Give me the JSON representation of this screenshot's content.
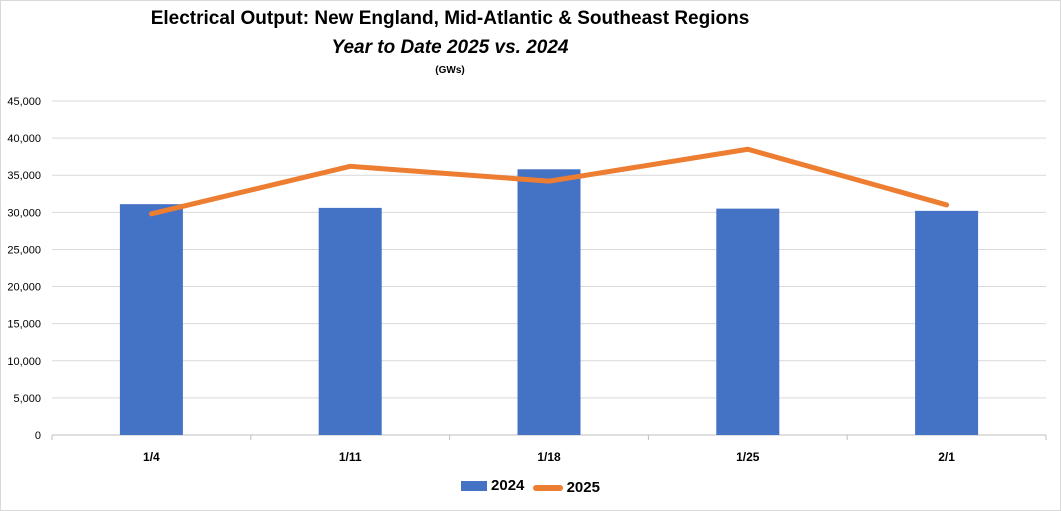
{
  "chart_data": {
    "type": "bar",
    "title": "Electrical Output:  New England, Mid-Atlantic & Southeast Regions",
    "subtitle": "Year to Date 2025 vs. 2024",
    "unit": "(GWs)",
    "categories": [
      "1/4",
      "1/11",
      "1/18",
      "1/25",
      "2/1"
    ],
    "series": [
      {
        "name": "2024",
        "type": "bar",
        "color": "#4472c4",
        "values": [
          31100,
          30600,
          35800,
          30500,
          30200
        ]
      },
      {
        "name": "2025",
        "type": "line",
        "color": "#ed7d31",
        "values": [
          29800,
          36200,
          34200,
          38500,
          31000
        ]
      }
    ],
    "ylim": [
      0,
      45000
    ],
    "yticks": [
      "0",
      "5,000",
      "10,000",
      "15,000",
      "20,000",
      "25,000",
      "30,000",
      "35,000",
      "40,000",
      "45,000"
    ],
    "grid": true,
    "legend_position": "bottom",
    "gridline_color": "#d9d9d9"
  }
}
